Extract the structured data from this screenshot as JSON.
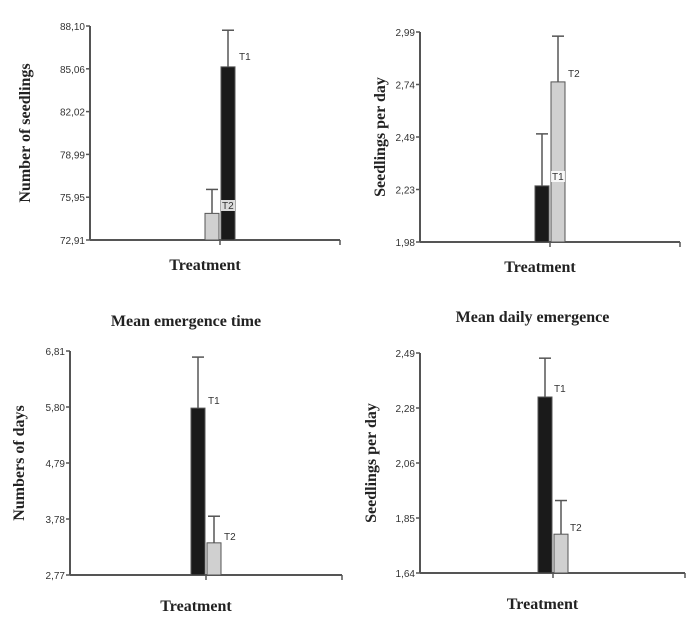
{
  "chart_data": [
    {
      "type": "bar",
      "title": "",
      "xlabel": "Treatment",
      "ylabel": "Number of seedlings",
      "ylim": [
        72.91,
        88.1
      ],
      "yticks": [
        "72,91",
        "75,95",
        "78,99",
        "82,02",
        "85,06",
        "88,10"
      ],
      "series": [
        {
          "name": "T2",
          "value": 74.8,
          "error_upper": 76.5,
          "color": "#d0d0d0"
        },
        {
          "name": "T1",
          "value": 85.2,
          "error_upper": 87.8,
          "color": "#1a1a1a"
        }
      ],
      "grid": false
    },
    {
      "type": "bar",
      "title": "",
      "xlabel": "Treatment",
      "ylabel": "Seedlings per day",
      "ylim": [
        1.98,
        2.99
      ],
      "yticks": [
        "1,98",
        "2,23",
        "2,49",
        "2,74",
        "2,99"
      ],
      "series": [
        {
          "name": "T1",
          "value": 2.25,
          "error_upper": 2.5,
          "color": "#1a1a1a"
        },
        {
          "name": "T2",
          "value": 2.75,
          "error_upper": 2.97,
          "color": "#d0d0d0"
        }
      ],
      "grid": false
    },
    {
      "type": "bar",
      "title": "Mean emergence time",
      "xlabel": "Treatment",
      "ylabel": "Numbers of days",
      "ylim": [
        2.77,
        6.81
      ],
      "yticks": [
        "2,77",
        "3,78",
        "4,79",
        "5,80",
        "6,81"
      ],
      "series": [
        {
          "name": "T1",
          "value": 5.78,
          "error_upper": 6.7,
          "color": "#1a1a1a"
        },
        {
          "name": "T2",
          "value": 3.35,
          "error_upper": 3.83,
          "color": "#d0d0d0"
        }
      ],
      "grid": false
    },
    {
      "type": "bar",
      "title": "Mean daily emergence",
      "xlabel": "Treatment",
      "ylabel": "Seedlings per day",
      "ylim": [
        1.64,
        2.49
      ],
      "yticks": [
        "1,64",
        "1,85",
        "2,06",
        "2,28",
        "2,49"
      ],
      "series": [
        {
          "name": "T1",
          "value": 2.32,
          "error_upper": 2.47,
          "color": "#1a1a1a"
        },
        {
          "name": "T2",
          "value": 1.79,
          "error_upper": 1.92,
          "color": "#d0d0d0"
        }
      ],
      "grid": false
    }
  ]
}
